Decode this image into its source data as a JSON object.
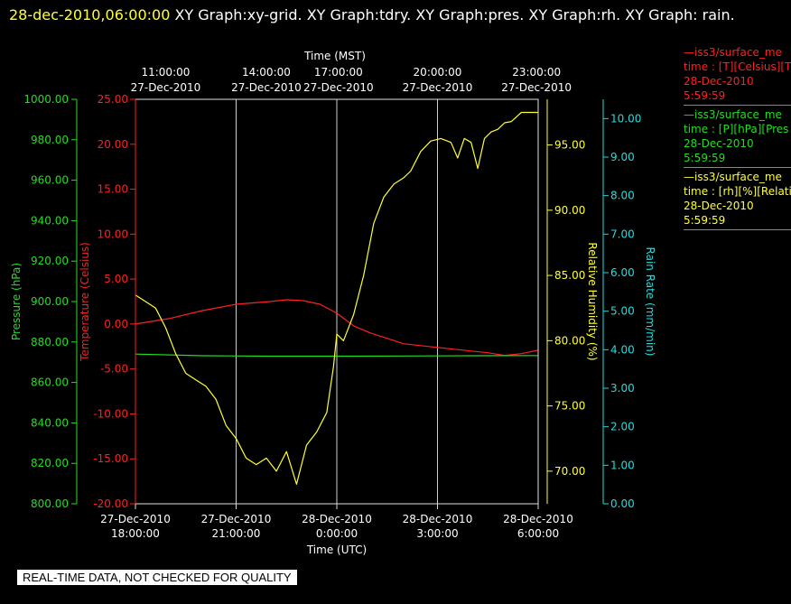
{
  "header": {
    "timestamp": "28-dec-2010,06:00:00",
    "graphs": " XY Graph:xy-grid.  XY Graph:tdry.  XY Graph:pres.  XY Graph:rh.  XY Graph: rain."
  },
  "legend": [
    {
      "line1": "—iss3/surface_me",
      "line2": "time : [T][Celsius][T",
      "line3": "28-Dec-2010",
      "line4": "5:59:59",
      "color": "#ff2020"
    },
    {
      "line1": "—iss3/surface_me",
      "line2": "time : [P][hPa][Pres",
      "line3": "28-Dec-2010",
      "line4": "5:59:59",
      "color": "#22dd22"
    },
    {
      "line1": "—iss3/surface_me",
      "line2": "time : [rh][%][Relati",
      "line3": "28-Dec-2010",
      "line4": "5:59:59",
      "color": "#ffff33"
    }
  ],
  "banner": "REAL-TIME DATA, NOT CHECKED FOR QUALITY",
  "chart_data": {
    "type": "line",
    "x_unit": "hours since 27-Dec-2010 18:00 UTC",
    "xlim": [
      0,
      12
    ],
    "grid": true,
    "top_axis": {
      "label": "Time (MST)",
      "ticks": [
        {
          "x": 0.9,
          "t1": "11:00:00",
          "t2": "27-Dec-2010"
        },
        {
          "x": 3.9,
          "t1": "14:00:00",
          "t2": "27-Dec-2010"
        },
        {
          "x": 6.05,
          "t1": "17:00:00",
          "t2": "27-Dec-2010"
        },
        {
          "x": 9.0,
          "t1": "20:00:00",
          "t2": "27-Dec-2010"
        },
        {
          "x": 11.95,
          "t1": "23:00:00",
          "t2": "27-Dec-2010"
        }
      ]
    },
    "bottom_axis": {
      "label": "Time (UTC)",
      "ticks": [
        {
          "x": 0,
          "t1": "27-Dec-2010",
          "t2": "18:00:00"
        },
        {
          "x": 3,
          "t1": "27-Dec-2010",
          "t2": "21:00:00"
        },
        {
          "x": 6,
          "t1": "28-Dec-2010",
          "t2": "0:00:00"
        },
        {
          "x": 9,
          "t1": "28-Dec-2010",
          "t2": "3:00:00"
        },
        {
          "x": 12,
          "t1": "28-Dec-2010",
          "t2": "6:00:00"
        }
      ]
    },
    "axes": {
      "pressure": {
        "label": "Pressure (hPa)",
        "color": "#22dd22",
        "ylim": [
          800,
          1000
        ],
        "ticks": [
          "800.00",
          "820.00",
          "840.00",
          "860.00",
          "880.00",
          "900.00",
          "920.00",
          "940.00",
          "960.00",
          "980.00",
          "1000.00"
        ]
      },
      "temperature": {
        "label": "Temperature (Celsius)",
        "color": "#ff2020",
        "ylim": [
          -20,
          25
        ],
        "ticks": [
          "-20.00",
          "-15.00",
          "-10.00",
          "-5.00",
          "0.00",
          "5.00",
          "10.00",
          "15.00",
          "20.00",
          "25.00"
        ]
      },
      "rh": {
        "label": "Relative Humidity (%)",
        "color": "#ffff33",
        "ylim": [
          67.5,
          98.5
        ],
        "ticks": [
          "70.00",
          "75.00",
          "80.00",
          "85.00",
          "90.00",
          "95.00"
        ]
      },
      "rain": {
        "label": "Rain Rate (mm/min)",
        "color": "#22dddd",
        "ylim": [
          0,
          10.5
        ],
        "ticks": [
          "0.00",
          "1.00",
          "2.00",
          "3.00",
          "4.00",
          "5.00",
          "6.00",
          "7.00",
          "8.00",
          "9.00",
          "10.00"
        ]
      }
    },
    "series": [
      {
        "name": "Temperature",
        "axis": "temperature",
        "color": "#ff2020",
        "x": [
          0,
          1,
          2,
          3,
          4,
          4.5,
          5,
          5.5,
          6,
          6.5,
          7,
          7.5,
          8,
          8.5,
          9,
          9.5,
          10,
          10.5,
          11,
          11.5,
          12
        ],
        "y": [
          0.0,
          0.6,
          1.5,
          2.2,
          2.5,
          2.7,
          2.6,
          2.2,
          1.2,
          -0.2,
          -1.0,
          -1.6,
          -2.2,
          -2.4,
          -2.6,
          -2.8,
          -3.0,
          -3.2,
          -3.5,
          -3.3,
          -2.9
        ]
      },
      {
        "name": "Pressure",
        "axis": "pressure",
        "color": "#22dd22",
        "x": [
          0,
          2,
          4,
          6,
          8,
          10,
          12
        ],
        "y": [
          874.0,
          873.2,
          873.0,
          873.0,
          873.1,
          873.2,
          873.3
        ]
      },
      {
        "name": "Relative Humidity",
        "axis": "rh",
        "color": "#ffff33",
        "x": [
          0,
          0.3,
          0.6,
          0.9,
          1.2,
          1.5,
          1.8,
          2.1,
          2.4,
          2.7,
          3.0,
          3.3,
          3.6,
          3.9,
          4.2,
          4.5,
          4.8,
          5.1,
          5.4,
          5.7,
          5.9,
          6.0,
          6.2,
          6.5,
          6.8,
          7.1,
          7.4,
          7.7,
          8.0,
          8.2,
          8.5,
          8.8,
          9.1,
          9.4,
          9.6,
          9.8,
          10.0,
          10.2,
          10.4,
          10.6,
          10.8,
          11.0,
          11.2,
          11.5,
          11.8,
          12.0
        ],
        "y": [
          83.5,
          83.0,
          82.5,
          81.0,
          79.0,
          77.5,
          77.0,
          76.5,
          75.5,
          73.5,
          72.5,
          71.0,
          70.5,
          71.0,
          70.0,
          71.5,
          69.0,
          72.0,
          73.0,
          74.5,
          78.0,
          80.5,
          80.0,
          82.0,
          85.0,
          89.0,
          91.0,
          92.0,
          92.5,
          93.0,
          94.5,
          95.3,
          95.5,
          95.2,
          94.0,
          95.5,
          95.2,
          93.2,
          95.5,
          96.0,
          96.2,
          96.7,
          96.8,
          97.5,
          97.5,
          97.5
        ]
      }
    ]
  }
}
